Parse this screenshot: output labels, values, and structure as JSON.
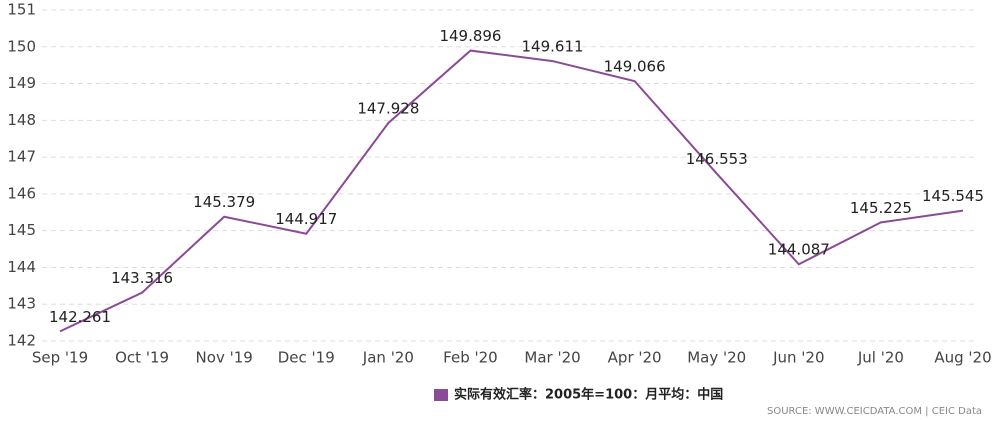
{
  "chart_data": {
    "type": "line",
    "categories": [
      "Sep '19",
      "Oct '19",
      "Nov '19",
      "Dec '19",
      "Jan '20",
      "Feb '20",
      "Mar '20",
      "Apr '20",
      "May '20",
      "Jun '20",
      "Jul '20",
      "Aug '20"
    ],
    "series": [
      {
        "name": "实际有效汇率：2005年=100：月平均：中国",
        "color": "#8b4a96",
        "values": [
          142.261,
          143.316,
          145.379,
          144.917,
          147.928,
          149.896,
          149.611,
          149.066,
          146.553,
          144.087,
          145.225,
          145.545
        ]
      }
    ],
    "ylim": [
      142,
      151
    ],
    "yticks": [
      142,
      143,
      144,
      145,
      146,
      147,
      148,
      149,
      150,
      151
    ],
    "grid": true,
    "source": "SOURCE: WWW.CEICDATA.COM | CEIC Data"
  }
}
